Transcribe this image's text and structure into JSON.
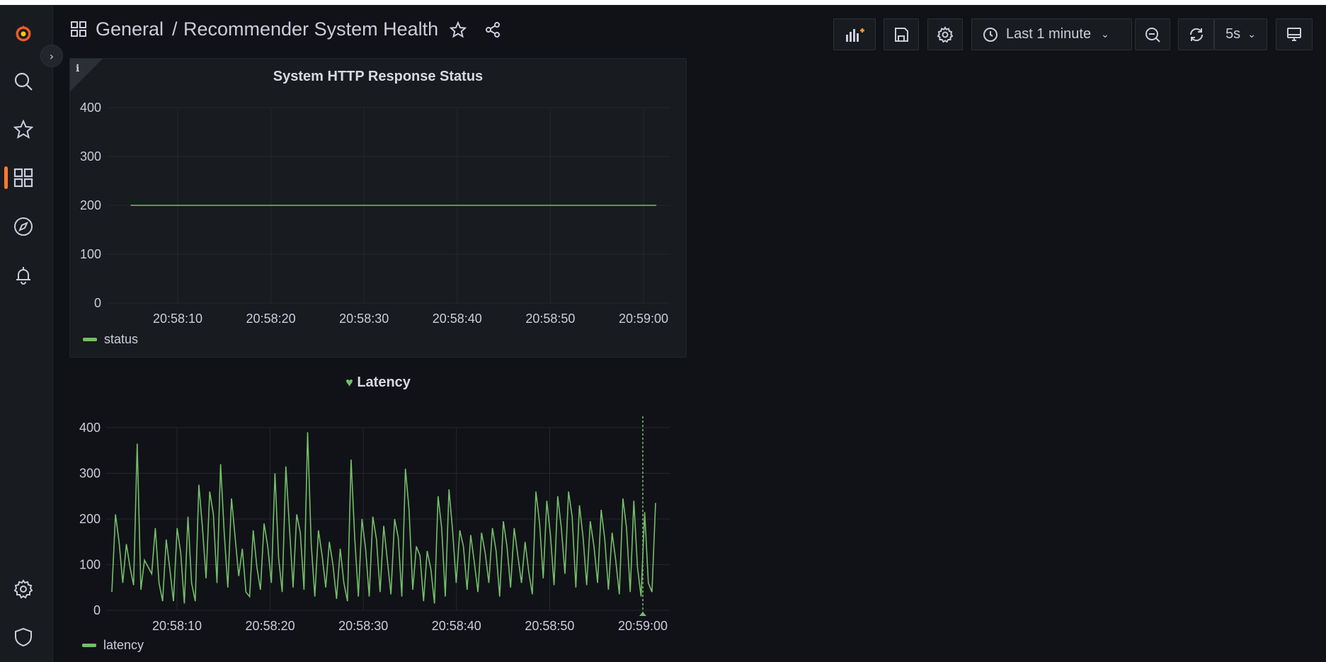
{
  "header": {
    "breadcrumb_folder": "General",
    "breadcrumb_separator": "/",
    "dashboard_title": "Recommender System Health",
    "time_range": "Last 1 minute",
    "refresh_interval": "5s"
  },
  "colors": {
    "series": "#73bf69",
    "accent": "#ff7a2e",
    "background": "#111217",
    "panel": "#181b1f"
  },
  "sidebar": {
    "items": [
      {
        "icon": "grafana-logo-icon"
      },
      {
        "icon": "search-icon"
      },
      {
        "icon": "star-icon"
      },
      {
        "icon": "dashboards-icon",
        "active": true
      },
      {
        "icon": "explore-icon"
      },
      {
        "icon": "alerting-bell-icon"
      },
      {
        "icon": "settings-gear-icon"
      },
      {
        "icon": "shield-icon"
      }
    ]
  },
  "panels": {
    "status": {
      "title": "System HTTP Response Status",
      "info": "i",
      "legend": "status"
    },
    "latency": {
      "title": "Latency",
      "legend": "latency"
    }
  },
  "chart_data": [
    {
      "type": "line",
      "title": "System HTTP Response Status",
      "x_ticks": [
        "20:58:10",
        "20:58:20",
        "20:58:30",
        "20:58:40",
        "20:58:50",
        "20:59:00"
      ],
      "y_ticks": [
        "0",
        "100",
        "200",
        "300",
        "400"
      ],
      "ylim": [
        0,
        400
      ],
      "xlim_seconds_since_start": [
        0,
        60
      ],
      "series": [
        {
          "name": "status",
          "x": [
            2,
            60
          ],
          "values": [
            200,
            200
          ]
        }
      ],
      "legend": "bottom-left",
      "grid": true
    },
    {
      "type": "line",
      "title": "Latency",
      "x_ticks": [
        "20:58:10",
        "20:58:20",
        "20:58:30",
        "20:58:40",
        "20:58:50",
        "20:59:00"
      ],
      "y_ticks": [
        "0",
        "100",
        "200",
        "300",
        "400"
      ],
      "ylim": [
        0,
        400
      ],
      "series": [
        {
          "name": "latency",
          "values": [
            40,
            210,
            150,
            60,
            145,
            95,
            55,
            365,
            45,
            110,
            95,
            80,
            180,
            60,
            20,
            155,
            90,
            20,
            180,
            125,
            15,
            205,
            60,
            20,
            275,
            180,
            70,
            260,
            210,
            60,
            320,
            170,
            50,
            245,
            160,
            75,
            135,
            40,
            30,
            175,
            95,
            45,
            190,
            140,
            60,
            300,
            115,
            40,
            315,
            180,
            50,
            210,
            170,
            45,
            390,
            145,
            30,
            175,
            120,
            50,
            150,
            100,
            25,
            135,
            60,
            20,
            330,
            160,
            30,
            200,
            135,
            30,
            205,
            155,
            40,
            185,
            110,
            35,
            200,
            160,
            30,
            310,
            220,
            45,
            140,
            120,
            20,
            130,
            90,
            15,
            250,
            180,
            30,
            265,
            175,
            60,
            175,
            140,
            45,
            165,
            105,
            40,
            170,
            125,
            60,
            180,
            130,
            30,
            195,
            140,
            50,
            180,
            120,
            60,
            150,
            85,
            35,
            260,
            190,
            70,
            240,
            165,
            55,
            250,
            180,
            80,
            260,
            205,
            50,
            230,
            160,
            55,
            195,
            140,
            60,
            220,
            155,
            45,
            170,
            110,
            35,
            245,
            180,
            40,
            240,
            95,
            30,
            215,
            60,
            40,
            235
          ]
        }
      ],
      "legend": "bottom-left",
      "grid": true,
      "cursor_marker_time": "20:59:00"
    }
  ]
}
